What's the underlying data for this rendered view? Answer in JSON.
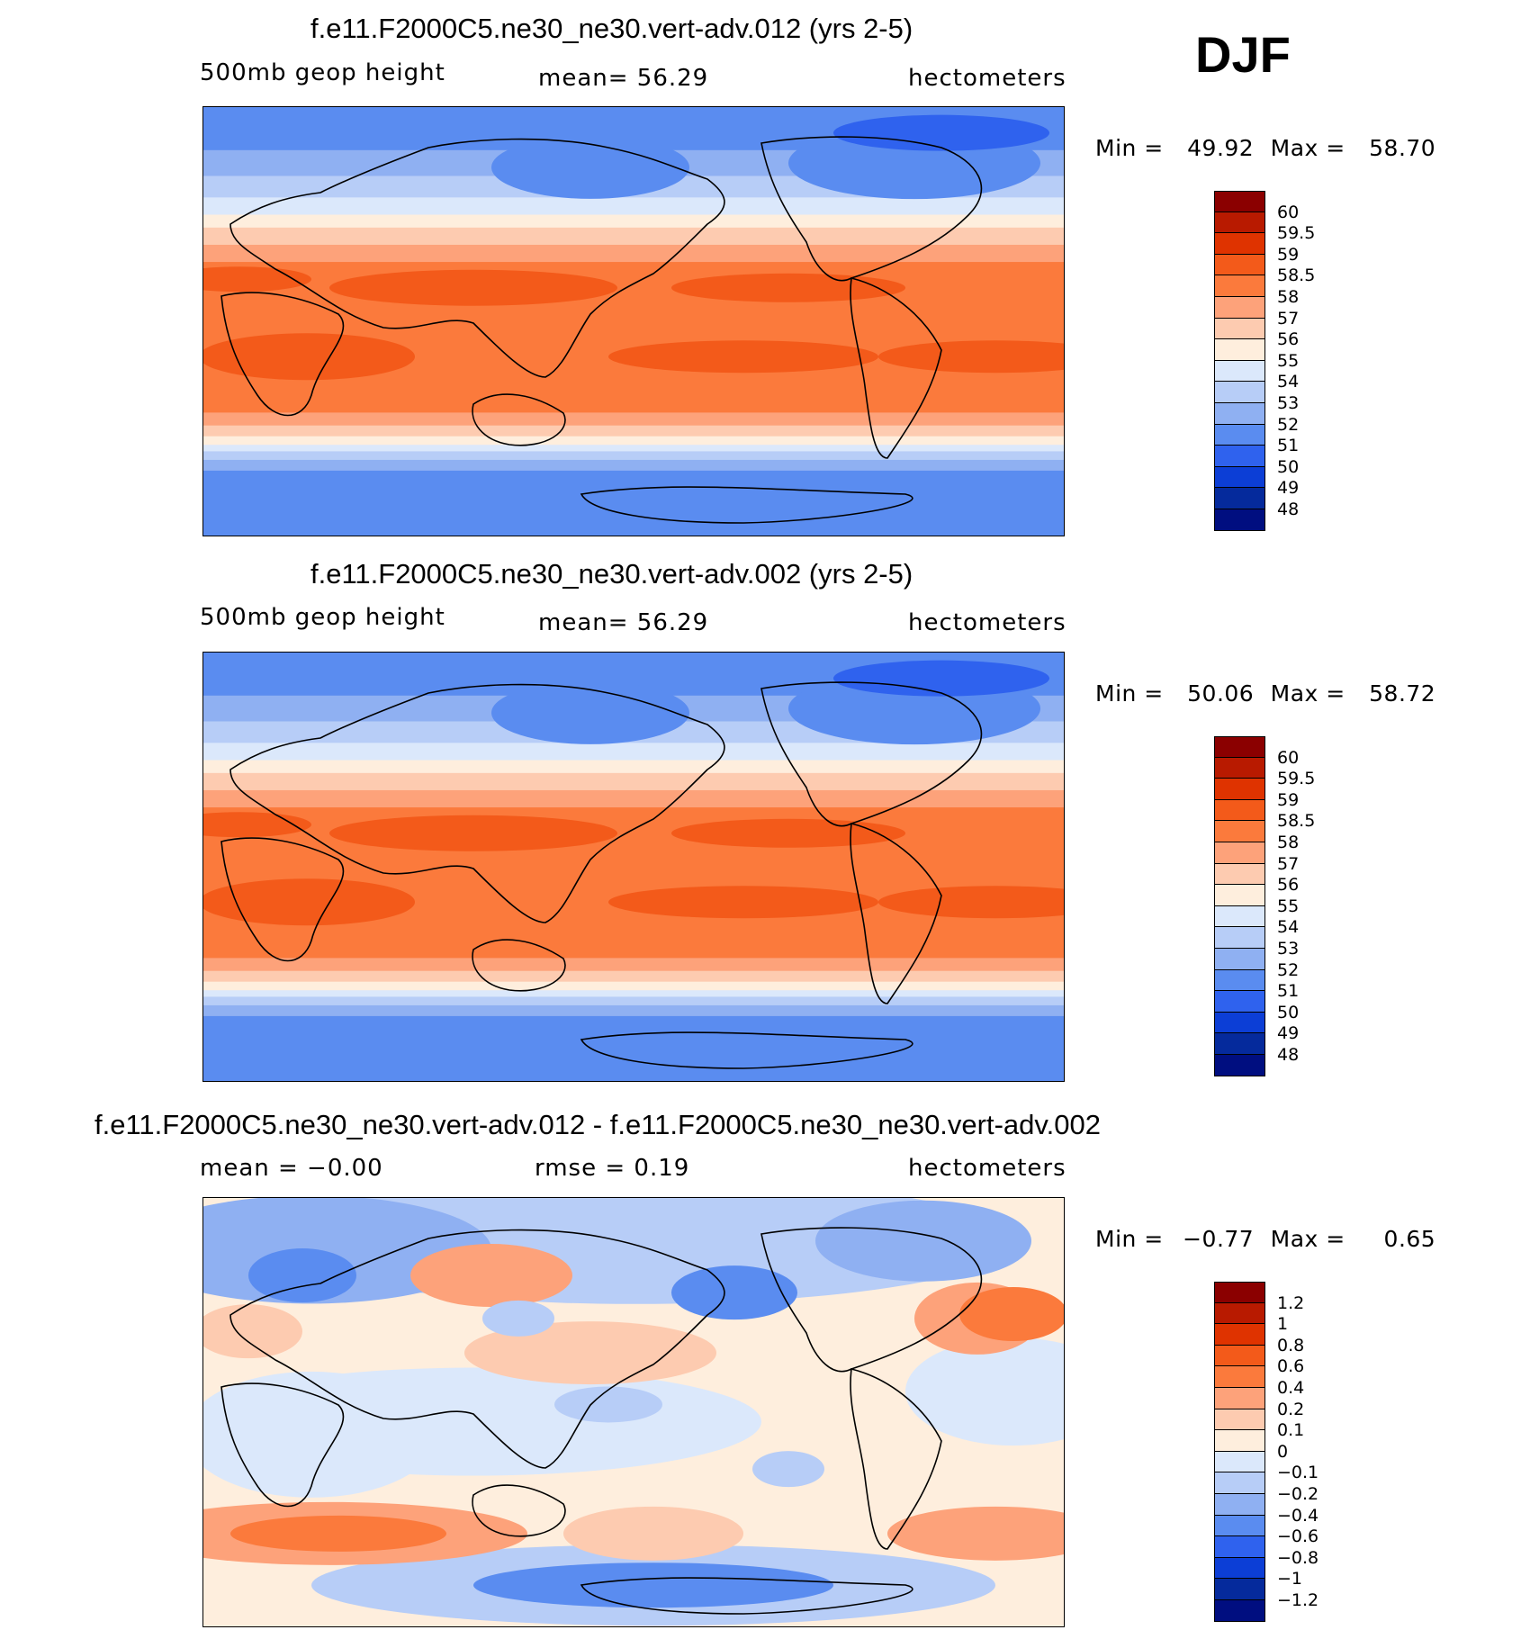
{
  "season": "DJF",
  "panels": [
    {
      "id": "case1",
      "title": "f.e11.F2000C5.ne30_ne30.vert-adv.012 (yrs 2-5)",
      "variable": "500mb  geop  height",
      "stat": "mean=   56.29",
      "units": "hectometers",
      "min_label": "Min =",
      "min_value": "49.92",
      "max_label": "Max =",
      "max_value": "58.70",
      "type": "absolute",
      "colorbar": {
        "labels": [
          "60",
          "59.5",
          "59",
          "58.5",
          "58",
          "57",
          "56",
          "55",
          "54",
          "53",
          "52",
          "51",
          "50",
          "49",
          "48"
        ],
        "colors": [
          "#8b0000",
          "#b81a00",
          "#df3300",
          "#f35a1a",
          "#fb7a3c",
          "#fda27a",
          "#fdcbb0",
          "#feeedd",
          "#dbe8fb",
          "#b7cdf7",
          "#8fb0f2",
          "#5a8cf0",
          "#2f62ee",
          "#0c3ed6",
          "#052a9c",
          "#000e80"
        ]
      }
    },
    {
      "id": "case2",
      "title": "f.e11.F2000C5.ne30_ne30.vert-adv.002 (yrs 2-5)",
      "variable": "500mb  geop  height",
      "stat": "mean=   56.29",
      "units": "hectometers",
      "min_label": "Min =",
      "min_value": "50.06",
      "max_label": "Max =",
      "max_value": "58.72",
      "type": "absolute",
      "colorbar": {
        "labels": [
          "60",
          "59.5",
          "59",
          "58.5",
          "58",
          "57",
          "56",
          "55",
          "54",
          "53",
          "52",
          "51",
          "50",
          "49",
          "48"
        ],
        "colors": [
          "#8b0000",
          "#b81a00",
          "#df3300",
          "#f35a1a",
          "#fb7a3c",
          "#fda27a",
          "#fdcbb0",
          "#feeedd",
          "#dbe8fb",
          "#b7cdf7",
          "#8fb0f2",
          "#5a8cf0",
          "#2f62ee",
          "#0c3ed6",
          "#052a9c",
          "#000e80"
        ]
      }
    },
    {
      "id": "diff",
      "title": "f.e11.F2000C5.ne30_ne30.vert-adv.012 - f.e11.F2000C5.ne30_ne30.vert-adv.002",
      "variable": "mean =   −0.00",
      "stat": "rmse =    0.19",
      "units": "hectometers",
      "min_label": "Min =",
      "min_value": "−0.77",
      "max_label": "Max =",
      "max_value": "0.65",
      "type": "difference",
      "colorbar": {
        "labels": [
          "1.2",
          "1",
          "0.8",
          "0.6",
          "0.4",
          "0.2",
          "0.1",
          "0",
          "−0.1",
          "−0.2",
          "−0.4",
          "−0.6",
          "−0.8",
          "−1",
          "−1.2"
        ],
        "colors": [
          "#8b0000",
          "#b81a00",
          "#df3300",
          "#f35a1a",
          "#fb7a3c",
          "#fda27a",
          "#fdcbb0",
          "#feeedd",
          "#dbe8fb",
          "#b7cdf7",
          "#8fb0f2",
          "#5a8cf0",
          "#2f62ee",
          "#0c3ed6",
          "#052a9c",
          "#000e80"
        ]
      }
    }
  ]
}
